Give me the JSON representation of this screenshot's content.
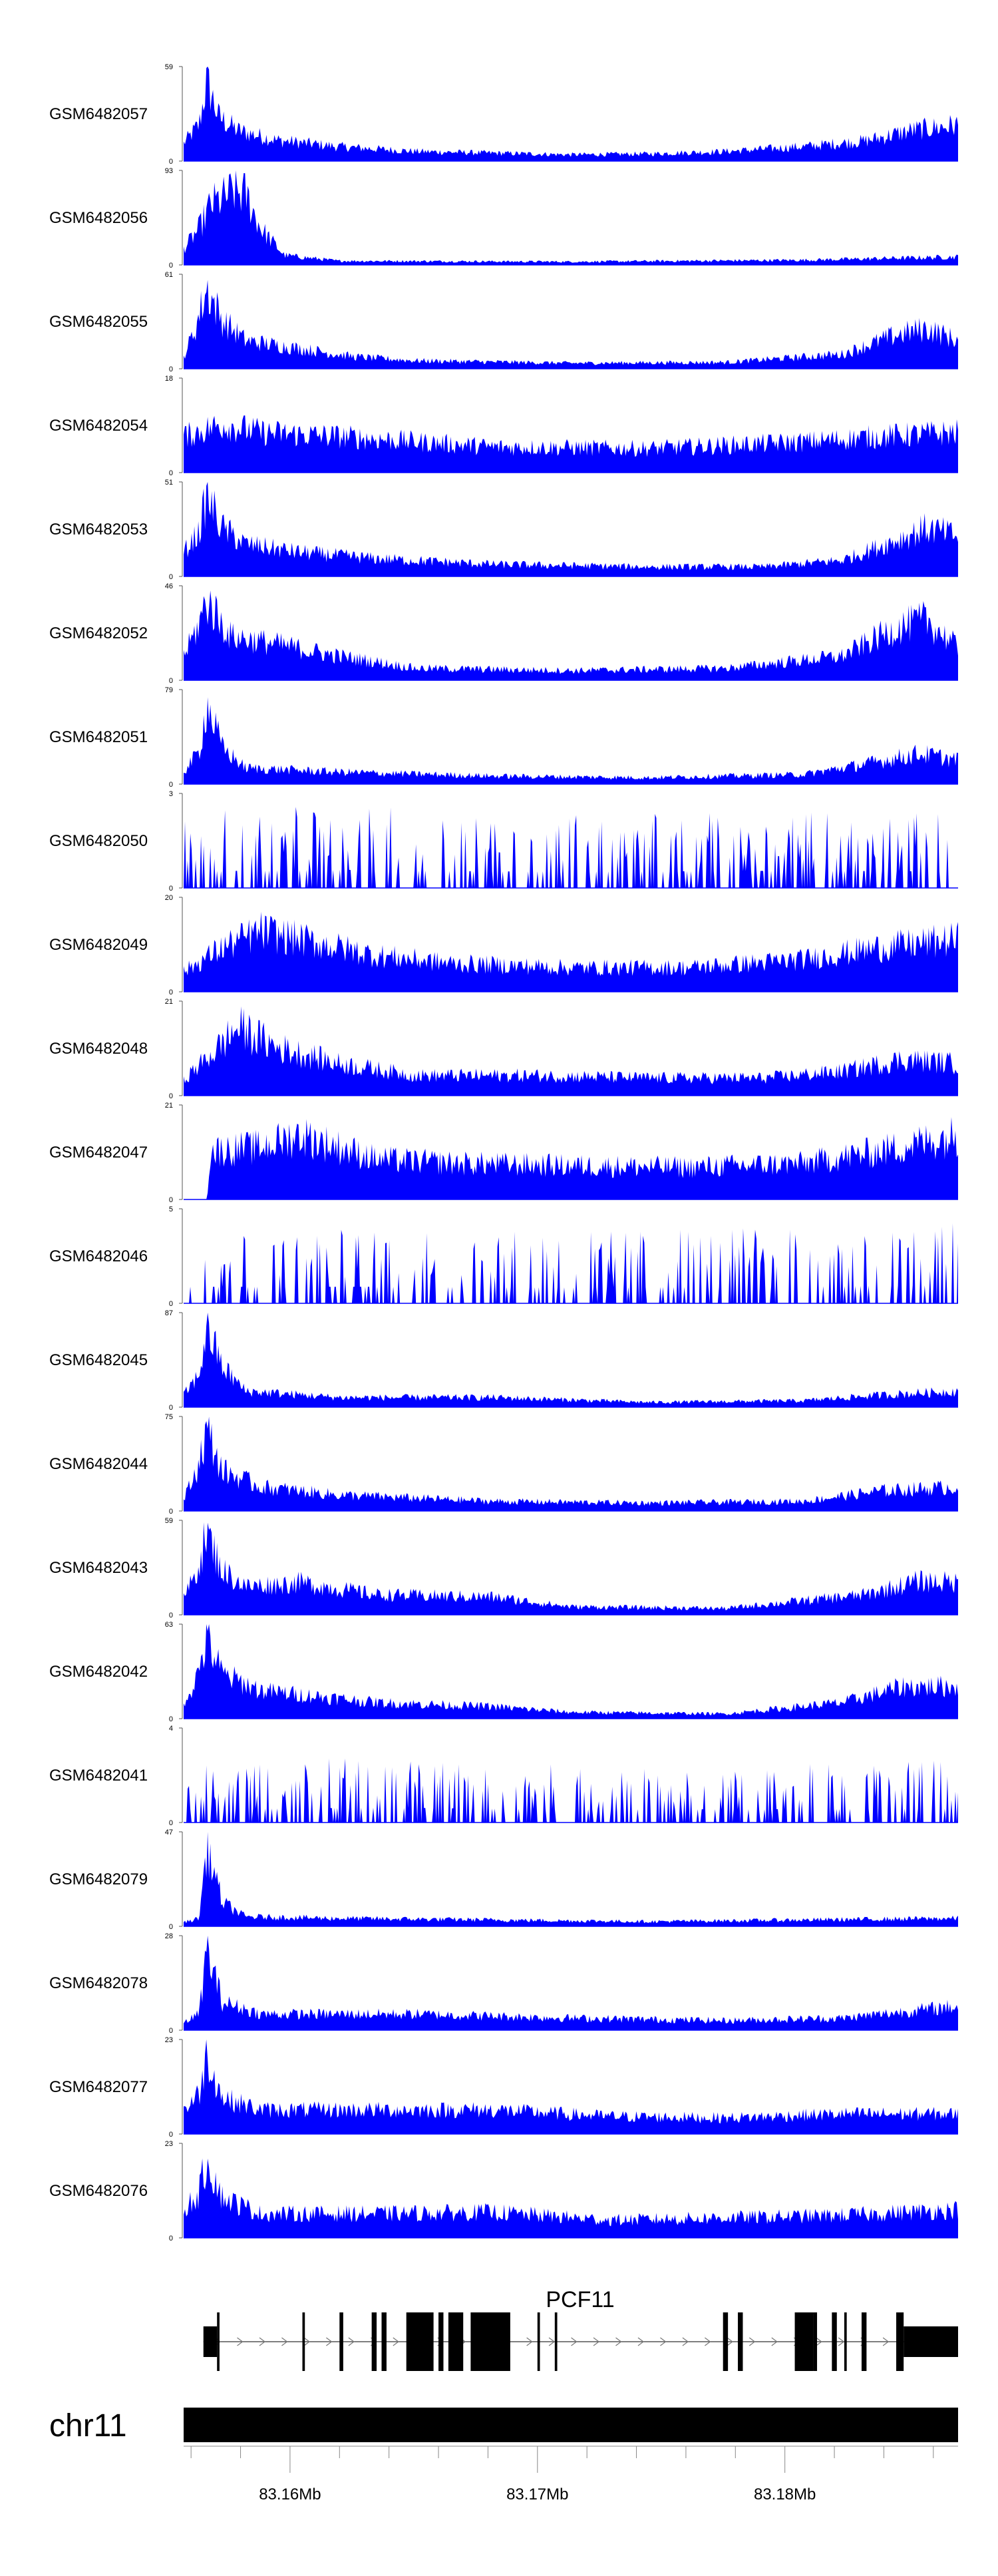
{
  "chart_data": {
    "type": "area",
    "title": "",
    "region": {
      "chromosome": "chr11",
      "start": 83155700,
      "end": 83187000
    },
    "color": "#0000ff",
    "tracks": [
      {
        "name": "GSM6482057",
        "max": 59,
        "profile": [
          [
            0.0,
            0.22
          ],
          [
            0.02,
            0.45
          ],
          [
            0.03,
            1.0
          ],
          [
            0.045,
            0.55
          ],
          [
            0.07,
            0.38
          ],
          [
            0.12,
            0.26
          ],
          [
            0.2,
            0.18
          ],
          [
            0.3,
            0.12
          ],
          [
            0.4,
            0.1
          ],
          [
            0.5,
            0.08
          ],
          [
            0.6,
            0.09
          ],
          [
            0.7,
            0.12
          ],
          [
            0.8,
            0.18
          ],
          [
            0.88,
            0.25
          ],
          [
            0.94,
            0.38
          ],
          [
            1.0,
            0.45
          ]
        ]
      },
      {
        "name": "GSM6482056",
        "max": 93,
        "profile": [
          [
            0.0,
            0.2
          ],
          [
            0.02,
            0.45
          ],
          [
            0.035,
            0.75
          ],
          [
            0.05,
            0.82
          ],
          [
            0.065,
            0.92
          ],
          [
            0.08,
            0.88
          ],
          [
            0.1,
            0.45
          ],
          [
            0.13,
            0.12
          ],
          [
            0.2,
            0.05
          ],
          [
            0.5,
            0.04
          ],
          [
            0.8,
            0.06
          ],
          [
            0.9,
            0.08
          ],
          [
            1.0,
            0.1
          ]
        ]
      },
      {
        "name": "GSM6482055",
        "max": 61,
        "profile": [
          [
            0.0,
            0.15
          ],
          [
            0.015,
            0.5
          ],
          [
            0.03,
            1.0
          ],
          [
            0.05,
            0.6
          ],
          [
            0.08,
            0.35
          ],
          [
            0.15,
            0.25
          ],
          [
            0.22,
            0.15
          ],
          [
            0.3,
            0.1
          ],
          [
            0.5,
            0.07
          ],
          [
            0.7,
            0.08
          ],
          [
            0.85,
            0.18
          ],
          [
            0.92,
            0.42
          ],
          [
            0.96,
            0.5
          ],
          [
            1.0,
            0.35
          ]
        ]
      },
      {
        "name": "GSM6482054",
        "max": 18,
        "profile": [
          [
            0.0,
            0.45
          ],
          [
            0.05,
            0.6
          ],
          [
            0.1,
            0.5
          ],
          [
            0.2,
            0.45
          ],
          [
            0.4,
            0.32
          ],
          [
            0.6,
            0.3
          ],
          [
            0.8,
            0.38
          ],
          [
            0.9,
            0.45
          ],
          [
            1.0,
            0.5
          ]
        ]
      },
      {
        "name": "GSM6482053",
        "max": 51,
        "profile": [
          [
            0.0,
            0.3
          ],
          [
            0.02,
            0.55
          ],
          [
            0.03,
            1.0
          ],
          [
            0.05,
            0.6
          ],
          [
            0.08,
            0.4
          ],
          [
            0.15,
            0.3
          ],
          [
            0.25,
            0.22
          ],
          [
            0.4,
            0.15
          ],
          [
            0.6,
            0.12
          ],
          [
            0.75,
            0.12
          ],
          [
            0.85,
            0.2
          ],
          [
            0.92,
            0.45
          ],
          [
            0.96,
            0.6
          ],
          [
            1.0,
            0.5
          ]
        ]
      },
      {
        "name": "GSM6482052",
        "max": 46,
        "profile": [
          [
            0.0,
            0.3
          ],
          [
            0.02,
            0.7
          ],
          [
            0.03,
            1.0
          ],
          [
            0.06,
            0.55
          ],
          [
            0.12,
            0.45
          ],
          [
            0.2,
            0.3
          ],
          [
            0.3,
            0.15
          ],
          [
            0.5,
            0.12
          ],
          [
            0.7,
            0.15
          ],
          [
            0.85,
            0.3
          ],
          [
            0.92,
            0.65
          ],
          [
            0.96,
            0.75
          ],
          [
            1.0,
            0.4
          ]
        ]
      },
      {
        "name": "GSM6482051",
        "max": 79,
        "profile": [
          [
            0.0,
            0.15
          ],
          [
            0.02,
            0.4
          ],
          [
            0.03,
            1.0
          ],
          [
            0.05,
            0.45
          ],
          [
            0.08,
            0.2
          ],
          [
            0.2,
            0.15
          ],
          [
            0.4,
            0.1
          ],
          [
            0.6,
            0.08
          ],
          [
            0.8,
            0.12
          ],
          [
            0.88,
            0.25
          ],
          [
            0.95,
            0.38
          ],
          [
            1.0,
            0.3
          ]
        ]
      },
      {
        "name": "GSM6482050",
        "max": 3,
        "profile": [
          [
            0.0,
            0.5
          ],
          [
            0.2,
            0.55
          ],
          [
            0.4,
            0.5
          ],
          [
            0.6,
            0.5
          ],
          [
            0.8,
            0.52
          ],
          [
            1.0,
            0.5
          ]
        ]
      },
      {
        "name": "GSM6482049",
        "max": 20,
        "profile": [
          [
            0.0,
            0.25
          ],
          [
            0.05,
            0.55
          ],
          [
            0.1,
            0.75
          ],
          [
            0.15,
            0.65
          ],
          [
            0.25,
            0.45
          ],
          [
            0.35,
            0.35
          ],
          [
            0.5,
            0.3
          ],
          [
            0.65,
            0.3
          ],
          [
            0.8,
            0.4
          ],
          [
            0.9,
            0.55
          ],
          [
            1.0,
            0.65
          ]
        ]
      },
      {
        "name": "GSM6482048",
        "max": 21,
        "profile": [
          [
            0.0,
            0.2
          ],
          [
            0.04,
            0.55
          ],
          [
            0.07,
            0.85
          ],
          [
            0.12,
            0.6
          ],
          [
            0.2,
            0.4
          ],
          [
            0.3,
            0.25
          ],
          [
            0.45,
            0.25
          ],
          [
            0.6,
            0.22
          ],
          [
            0.75,
            0.22
          ],
          [
            0.85,
            0.3
          ],
          [
            0.93,
            0.45
          ],
          [
            1.0,
            0.4
          ]
        ]
      },
      {
        "name": "GSM6482047",
        "max": 21,
        "profile": [
          [
            0.0,
            0.0
          ],
          [
            0.03,
            0.0
          ],
          [
            0.035,
            0.6
          ],
          [
            0.1,
            0.65
          ],
          [
            0.15,
            0.8
          ],
          [
            0.25,
            0.5
          ],
          [
            0.35,
            0.45
          ],
          [
            0.5,
            0.42
          ],
          [
            0.65,
            0.4
          ],
          [
            0.8,
            0.45
          ],
          [
            0.9,
            0.6
          ],
          [
            1.0,
            0.8
          ]
        ]
      },
      {
        "name": "GSM6482046",
        "max": 5,
        "profile": [
          [
            0.0,
            0.5
          ],
          [
            0.25,
            0.5
          ],
          [
            0.5,
            0.48
          ],
          [
            0.75,
            0.5
          ],
          [
            1.0,
            0.55
          ]
        ]
      },
      {
        "name": "GSM6482045",
        "max": 87,
        "profile": [
          [
            0.0,
            0.15
          ],
          [
            0.02,
            0.4
          ],
          [
            0.03,
            1.0
          ],
          [
            0.05,
            0.5
          ],
          [
            0.08,
            0.2
          ],
          [
            0.2,
            0.12
          ],
          [
            0.4,
            0.12
          ],
          [
            0.6,
            0.06
          ],
          [
            0.8,
            0.08
          ],
          [
            0.9,
            0.15
          ],
          [
            1.0,
            0.2
          ]
        ]
      },
      {
        "name": "GSM6482044",
        "max": 75,
        "profile": [
          [
            0.0,
            0.15
          ],
          [
            0.015,
            0.45
          ],
          [
            0.03,
            1.0
          ],
          [
            0.05,
            0.5
          ],
          [
            0.1,
            0.3
          ],
          [
            0.2,
            0.2
          ],
          [
            0.4,
            0.12
          ],
          [
            0.6,
            0.1
          ],
          [
            0.8,
            0.12
          ],
          [
            0.9,
            0.25
          ],
          [
            1.0,
            0.3
          ]
        ]
      },
      {
        "name": "GSM6482043",
        "max": 59,
        "profile": [
          [
            0.0,
            0.2
          ],
          [
            0.015,
            0.5
          ],
          [
            0.03,
            1.0
          ],
          [
            0.05,
            0.55
          ],
          [
            0.08,
            0.35
          ],
          [
            0.15,
            0.4
          ],
          [
            0.25,
            0.25
          ],
          [
            0.4,
            0.22
          ],
          [
            0.5,
            0.1
          ],
          [
            0.7,
            0.08
          ],
          [
            0.88,
            0.25
          ],
          [
            0.95,
            0.42
          ],
          [
            1.0,
            0.4
          ]
        ]
      },
      {
        "name": "GSM6482042",
        "max": 63,
        "profile": [
          [
            0.0,
            0.2
          ],
          [
            0.015,
            0.45
          ],
          [
            0.03,
            1.0
          ],
          [
            0.05,
            0.55
          ],
          [
            0.1,
            0.35
          ],
          [
            0.15,
            0.3
          ],
          [
            0.25,
            0.2
          ],
          [
            0.4,
            0.15
          ],
          [
            0.5,
            0.08
          ],
          [
            0.7,
            0.06
          ],
          [
            0.85,
            0.2
          ],
          [
            0.93,
            0.4
          ],
          [
            1.0,
            0.4
          ]
        ]
      },
      {
        "name": "GSM6482041",
        "max": 4,
        "profile": [
          [
            0.0,
            0.4
          ],
          [
            0.25,
            0.45
          ],
          [
            0.5,
            0.4
          ],
          [
            0.75,
            0.4
          ],
          [
            1.0,
            0.42
          ]
        ]
      },
      {
        "name": "GSM6482079",
        "max": 47,
        "profile": [
          [
            0.0,
            0.05
          ],
          [
            0.02,
            0.1
          ],
          [
            0.03,
            1.0
          ],
          [
            0.05,
            0.3
          ],
          [
            0.08,
            0.12
          ],
          [
            0.2,
            0.1
          ],
          [
            0.4,
            0.08
          ],
          [
            0.6,
            0.06
          ],
          [
            0.8,
            0.08
          ],
          [
            1.0,
            0.1
          ]
        ]
      },
      {
        "name": "GSM6482078",
        "max": 28,
        "profile": [
          [
            0.0,
            0.1
          ],
          [
            0.02,
            0.2
          ],
          [
            0.03,
            1.0
          ],
          [
            0.05,
            0.35
          ],
          [
            0.1,
            0.2
          ],
          [
            0.3,
            0.2
          ],
          [
            0.5,
            0.15
          ],
          [
            0.7,
            0.12
          ],
          [
            0.85,
            0.15
          ],
          [
            0.95,
            0.25
          ],
          [
            1.0,
            0.3
          ]
        ]
      },
      {
        "name": "GSM6482077",
        "max": 23,
        "profile": [
          [
            0.0,
            0.3
          ],
          [
            0.02,
            0.5
          ],
          [
            0.03,
            1.0
          ],
          [
            0.05,
            0.45
          ],
          [
            0.1,
            0.3
          ],
          [
            0.25,
            0.3
          ],
          [
            0.4,
            0.3
          ],
          [
            0.55,
            0.22
          ],
          [
            0.7,
            0.2
          ],
          [
            0.85,
            0.25
          ],
          [
            1.0,
            0.25
          ]
        ]
      },
      {
        "name": "GSM6482076",
        "max": 23,
        "profile": [
          [
            0.0,
            0.35
          ],
          [
            0.02,
            0.55
          ],
          [
            0.03,
            1.0
          ],
          [
            0.05,
            0.5
          ],
          [
            0.1,
            0.3
          ],
          [
            0.25,
            0.3
          ],
          [
            0.4,
            0.32
          ],
          [
            0.55,
            0.22
          ],
          [
            0.7,
            0.25
          ],
          [
            0.85,
            0.28
          ],
          [
            1.0,
            0.35
          ]
        ]
      }
    ],
    "gene": {
      "name": "PCF11",
      "strand": "+",
      "exons": [
        {
          "start": 83156500,
          "end": 83157050,
          "thick": false
        },
        {
          "start": 83157050,
          "end": 83157150,
          "thick": true
        },
        {
          "start": 83160500,
          "end": 83160600,
          "thick": true
        },
        {
          "start": 83162000,
          "end": 83162150,
          "thick": true
        },
        {
          "start": 83163300,
          "end": 83163500,
          "thick": true
        },
        {
          "start": 83163700,
          "end": 83163900,
          "thick": true
        },
        {
          "start": 83164700,
          "end": 83165800,
          "thick": true
        },
        {
          "start": 83166000,
          "end": 83166200,
          "thick": true
        },
        {
          "start": 83166400,
          "end": 83167000,
          "thick": true
        },
        {
          "start": 83167300,
          "end": 83168900,
          "thick": true
        },
        {
          "start": 83170000,
          "end": 83170100,
          "thick": true
        },
        {
          "start": 83170700,
          "end": 83170800,
          "thick": true
        },
        {
          "start": 83177500,
          "end": 83177700,
          "thick": true
        },
        {
          "start": 83178100,
          "end": 83178300,
          "thick": true
        },
        {
          "start": 83180400,
          "end": 83181150,
          "thick": true
        },
        {
          "start": 83181150,
          "end": 83181300,
          "thick": true
        },
        {
          "start": 83181900,
          "end": 83182100,
          "thick": true
        },
        {
          "start": 83182400,
          "end": 83182500,
          "thick": true
        },
        {
          "start": 83183100,
          "end": 83183300,
          "thick": true
        },
        {
          "start": 83184500,
          "end": 83184800,
          "thick": true
        },
        {
          "start": 83184800,
          "end": 83187000,
          "thick": false
        }
      ]
    },
    "chromosome_label": "chr11",
    "axis": {
      "labels": [
        {
          "value": 83160000,
          "text": "83.16Mb"
        },
        {
          "value": 83170000,
          "text": "83.17Mb"
        },
        {
          "value": 83180000,
          "text": "83.18Mb"
        }
      ],
      "minor_ticks": [
        83156000,
        83158000,
        83162000,
        83164000,
        83166000,
        83168000,
        83172000,
        83174000,
        83176000,
        83178000,
        83182000,
        83184000,
        83186000
      ]
    }
  }
}
